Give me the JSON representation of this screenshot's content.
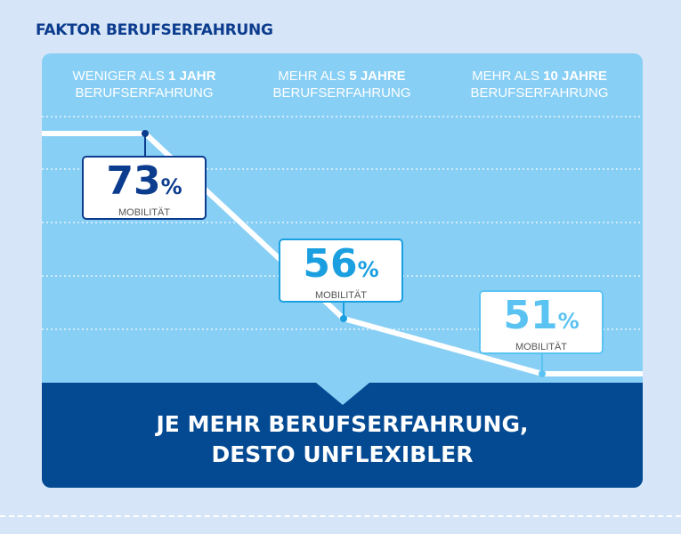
{
  "title": "FAKTOR BERUFSERFAHRUNG",
  "chart_data": {
    "type": "line",
    "categories": [
      {
        "light": "WENIGER ALS ",
        "bold": "1 JAHR",
        "line2": "BERUFSERFAHRUNG"
      },
      {
        "light": "MEHR ALS ",
        "bold": "5 JAHRE",
        "line2": "BERUFSERFAHRUNG"
      },
      {
        "light": "MEHR ALS ",
        "bold": "10 JAHRE",
        "line2": "BERUFSERFAHRUNG"
      }
    ],
    "values": [
      73,
      56,
      51
    ],
    "unit": "%",
    "value_label": "MOBILITÄT",
    "grid": true,
    "colors": [
      "#0c3c8e",
      "#1a9fe0",
      "#5bc3f2"
    ]
  },
  "conclusion": {
    "line1": "JE MEHR BERUFSERFAHRUNG,",
    "line2": "DESTO UNFLEXIBLER"
  },
  "colors": {
    "background": "#d6e5f7",
    "panel": "#88cff5",
    "band": "#044a93"
  }
}
